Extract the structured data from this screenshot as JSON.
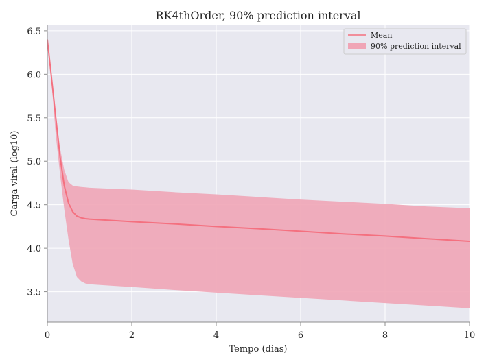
{
  "chart_data": {
    "type": "line",
    "title": "RK4thOrder, 90% prediction interval",
    "xlabel": "Tempo (dias)",
    "ylabel": "Carga viral (log10)",
    "xlim": [
      0,
      10
    ],
    "ylim": [
      3.15,
      6.57
    ],
    "xticks": [
      0,
      2,
      4,
      6,
      8,
      10
    ],
    "xtick_labels": [
      "0",
      "2",
      "4",
      "6",
      "8",
      "10"
    ],
    "yticks": [
      3.5,
      4.0,
      4.5,
      5.0,
      5.5,
      6.0,
      6.5
    ],
    "ytick_labels": [
      "3.5",
      "4.0",
      "4.5",
      "5.0",
      "5.5",
      "6.0",
      "6.5"
    ],
    "grid": true,
    "legend_position": "top-right",
    "colors": {
      "mean_line": "#f4707f",
      "interval_fill": "#f0a5b6",
      "plot_background": "#e8e8f0",
      "grid": "#ffffff"
    },
    "series": [
      {
        "name": "Mean",
        "kind": "line",
        "x": [
          0,
          0.1,
          0.2,
          0.3,
          0.4,
          0.5,
          0.6,
          0.7,
          0.8,
          0.9,
          1.0,
          1.5,
          2,
          3,
          4,
          5,
          6,
          7,
          8,
          9,
          10
        ],
        "y": [
          6.4,
          5.95,
          5.5,
          5.05,
          4.72,
          4.52,
          4.42,
          4.37,
          4.35,
          4.34,
          4.335,
          4.32,
          4.305,
          4.28,
          4.25,
          4.225,
          4.195,
          4.165,
          4.14,
          4.11,
          4.08
        ]
      },
      {
        "name": "90% prediction interval",
        "kind": "band",
        "x": [
          0,
          0.1,
          0.2,
          0.3,
          0.4,
          0.5,
          0.6,
          0.7,
          0.8,
          0.9,
          1.0,
          1.5,
          2,
          3,
          4,
          5,
          6,
          7,
          8,
          9,
          10
        ],
        "upper": [
          6.4,
          5.95,
          5.55,
          5.15,
          4.9,
          4.76,
          4.72,
          4.71,
          4.705,
          4.7,
          4.695,
          4.685,
          4.675,
          4.645,
          4.62,
          4.59,
          4.56,
          4.535,
          4.51,
          4.48,
          4.46
        ],
        "lower": [
          6.4,
          5.9,
          5.3,
          4.85,
          4.45,
          4.1,
          3.82,
          3.67,
          3.62,
          3.595,
          3.585,
          3.57,
          3.555,
          3.52,
          3.49,
          3.46,
          3.43,
          3.4,
          3.37,
          3.34,
          3.31
        ]
      }
    ]
  }
}
